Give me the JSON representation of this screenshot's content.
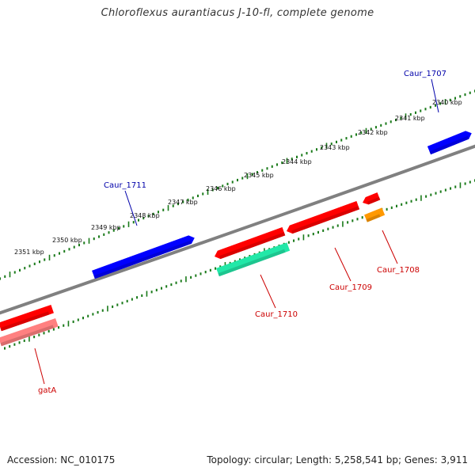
{
  "title": "Chloroflexus aurantiacus J-10-fl, complete genome",
  "footer": {
    "accession": "Accession: NC_010175",
    "summary": "Topology: circular; Length: 5,258,541 bp; Genes: 3,911"
  },
  "colors": {
    "backbone": "#808080",
    "ticks": "#1a7a1a",
    "forward_gene": "#0000ff",
    "reverse_gene": "#ff0000",
    "rrna": "#22e8a8",
    "trna": "#ff9900",
    "pseudo": "#ff8080",
    "forward_label": "#0000aa",
    "reverse_label": "#cc0000"
  },
  "scale_labels": [
    "2340 kbp",
    "2341 kbp",
    "2342 kbp",
    "2343 kbp",
    "2344 kbp",
    "2345 kbp",
    "2346 kbp",
    "2347 kbp",
    "2348 kbp",
    "2349 kbp",
    "2350 kbp",
    "2351 kbp"
  ],
  "features": [
    {
      "name": "gene-caur-1707",
      "kind": "forward_gene",
      "strand": "forward"
    },
    {
      "name": "gene-caur-1711",
      "kind": "forward_gene",
      "strand": "forward"
    },
    {
      "name": "gene-caur-1708-red",
      "kind": "reverse_gene",
      "strand": "reverse"
    },
    {
      "name": "gene-caur-1709",
      "kind": "reverse_gene",
      "strand": "reverse"
    },
    {
      "name": "gene-caur-1710-red",
      "kind": "reverse_gene",
      "strand": "reverse"
    },
    {
      "name": "gene-gata",
      "kind": "reverse_gene",
      "strand": "reverse"
    },
    {
      "name": "feature-caur-1708",
      "kind": "trna",
      "strand": "reverse"
    },
    {
      "name": "feature-caur-1710",
      "kind": "rrna",
      "strand": "reverse"
    },
    {
      "name": "feature-gata",
      "kind": "pseudo",
      "strand": "reverse"
    }
  ],
  "gene_labels": [
    {
      "text": "Caur_1707",
      "strand": "forward"
    },
    {
      "text": "Caur_1711",
      "strand": "forward"
    },
    {
      "text": "Caur_1708",
      "strand": "reverse"
    },
    {
      "text": "Caur_1709",
      "strand": "reverse"
    },
    {
      "text": "Caur_1710",
      "strand": "reverse"
    },
    {
      "text": "gatA",
      "strand": "reverse"
    }
  ]
}
